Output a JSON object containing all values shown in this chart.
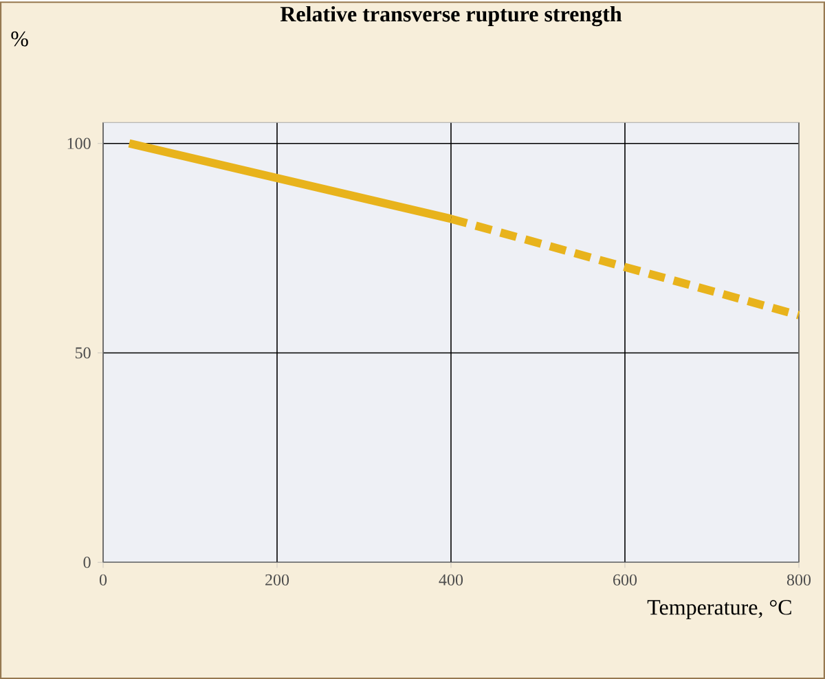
{
  "chart_data": {
    "type": "line",
    "title": "Relative transverse rupture strength",
    "xlabel": "Temperature, °C",
    "ylabel": "%",
    "series": [
      {
        "x": [
          30,
          400
        ],
        "values": [
          100,
          82
        ],
        "color": "#e8b31c",
        "line_style": "solid"
      },
      {
        "x": [
          400,
          800
        ],
        "values": [
          82,
          59
        ],
        "color": "#e8b31c",
        "line_style": "dashed"
      }
    ],
    "xlim": [
      0,
      800
    ],
    "ylim": [
      0,
      105
    ],
    "xticks": [
      0,
      200,
      400,
      600,
      800
    ],
    "yticks": [
      0,
      50,
      100
    ],
    "grid": true,
    "marker": "none"
  }
}
